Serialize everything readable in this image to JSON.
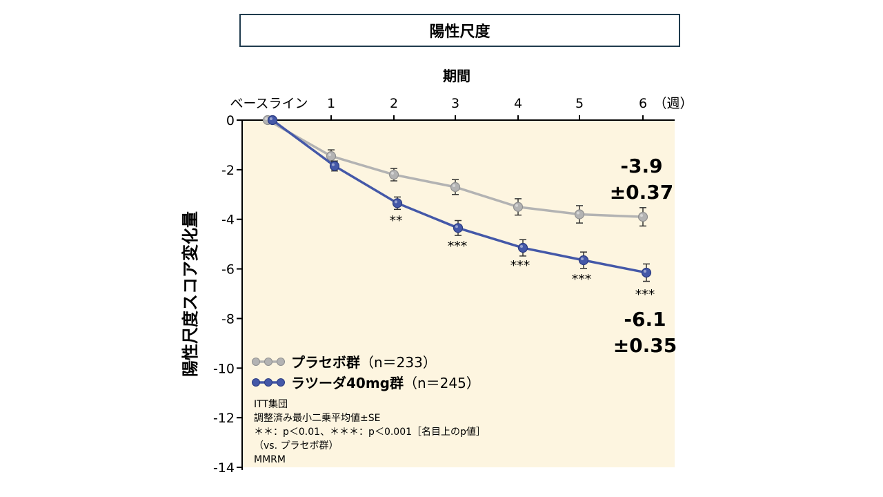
{
  "chart_data": {
    "type": "line",
    "title": "陽性尺度",
    "xlabel": "期間",
    "ylabel": "陽性尺度スコア変化量",
    "x_unit": "（週）",
    "x_categories": [
      "ベースライン",
      "1",
      "2",
      "3",
      "4",
      "5",
      "6"
    ],
    "x": [
      0,
      1,
      2,
      3,
      4,
      5,
      6
    ],
    "ylim": [
      -14,
      0
    ],
    "yticks": [
      0,
      -2,
      -4,
      -6,
      -8,
      -10,
      -12,
      -14
    ],
    "series": [
      {
        "name": "プラセボ群",
        "n_label": "（n＝233）",
        "color": "#b3b3b3",
        "values": [
          0,
          -1.45,
          -2.2,
          -2.7,
          -3.5,
          -3.8,
          -3.9
        ],
        "se": [
          0,
          0.25,
          0.25,
          0.3,
          0.33,
          0.35,
          0.37
        ]
      },
      {
        "name": "ラツーダ40mg群",
        "n_label": "（n＝245）",
        "color": "#4458a8",
        "values": [
          0,
          -1.85,
          -3.35,
          -4.35,
          -5.15,
          -5.65,
          -6.15
        ],
        "se": [
          0,
          0.2,
          0.25,
          0.3,
          0.33,
          0.33,
          0.35
        ]
      }
    ],
    "significance": [
      {
        "x": 2,
        "label": "**"
      },
      {
        "x": 3,
        "label": "***"
      },
      {
        "x": 4,
        "label": "***"
      },
      {
        "x": 5,
        "label": "***"
      },
      {
        "x": 6,
        "label": "***"
      }
    ],
    "end_labels": {
      "placebo": [
        "-3.9",
        "±0.37"
      ],
      "drug": [
        "-6.1",
        "±0.35"
      ]
    },
    "footnotes": [
      "ITT集団",
      "調整済み最小二乗平均値±SE",
      "＊＊：p＜0.01、＊＊＊：p＜0.001［名目上のp値］",
      "（vs. プラセボ群）",
      "MMRM"
    ],
    "colors": {
      "plot_bg": "#fdf5e0",
      "axis": "#000000",
      "title_border": "#1f3b4d"
    }
  }
}
